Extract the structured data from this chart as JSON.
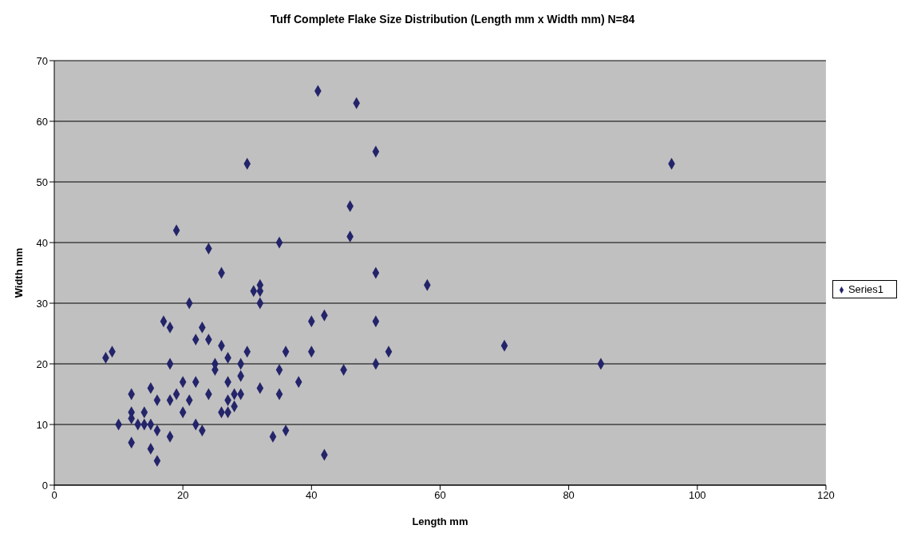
{
  "chart_data": {
    "type": "scatter",
    "title": "Tuff Complete Flake Size Distribution (Length mm x Width mm) N=84",
    "xlabel": "Length mm",
    "ylabel": "Width mm",
    "series": [
      {
        "name": "Series1",
        "color": "#24246b",
        "x": [
          8,
          9,
          10,
          12,
          12,
          12,
          12,
          13,
          14,
          14,
          15,
          15,
          15,
          16,
          16,
          16,
          17,
          18,
          18,
          18,
          18,
          19,
          19,
          20,
          20,
          21,
          21,
          22,
          22,
          22,
          23,
          23,
          24,
          24,
          24,
          25,
          25,
          26,
          26,
          26,
          27,
          27,
          27,
          27,
          28,
          28,
          29,
          29,
          29,
          30,
          30,
          31,
          32,
          32,
          32,
          32,
          34,
          35,
          35,
          35,
          36,
          36,
          38,
          40,
          40,
          41,
          42,
          42,
          45,
          46,
          46,
          47,
          50,
          50,
          50,
          50,
          52,
          58,
          70,
          85,
          96
        ],
        "values": [
          21,
          22,
          10,
          15,
          12,
          11,
          7,
          10,
          12,
          10,
          16,
          10,
          6,
          14,
          9,
          4,
          27,
          26,
          20,
          14,
          8,
          15,
          42,
          17,
          12,
          30,
          14,
          24,
          17,
          10,
          26,
          9,
          39,
          24,
          15,
          20,
          19,
          35,
          23,
          12,
          21,
          17,
          14,
          12,
          15,
          13,
          20,
          18,
          15,
          53,
          22,
          32,
          33,
          32,
          30,
          16,
          8,
          40,
          19,
          15,
          22,
          9,
          17,
          27,
          22,
          65,
          28,
          5,
          19,
          46,
          41,
          63,
          55,
          35,
          27,
          20,
          22,
          33,
          23,
          20,
          53
        ]
      }
    ],
    "xlim": [
      0,
      120
    ],
    "xticks": [
      0,
      20,
      40,
      60,
      80,
      100,
      120
    ],
    "ylim": [
      0,
      70
    ],
    "yticks": [
      0,
      10,
      20,
      30,
      40,
      50,
      60,
      70
    ],
    "grid": "y",
    "legend": "right",
    "marker": "diamond"
  }
}
